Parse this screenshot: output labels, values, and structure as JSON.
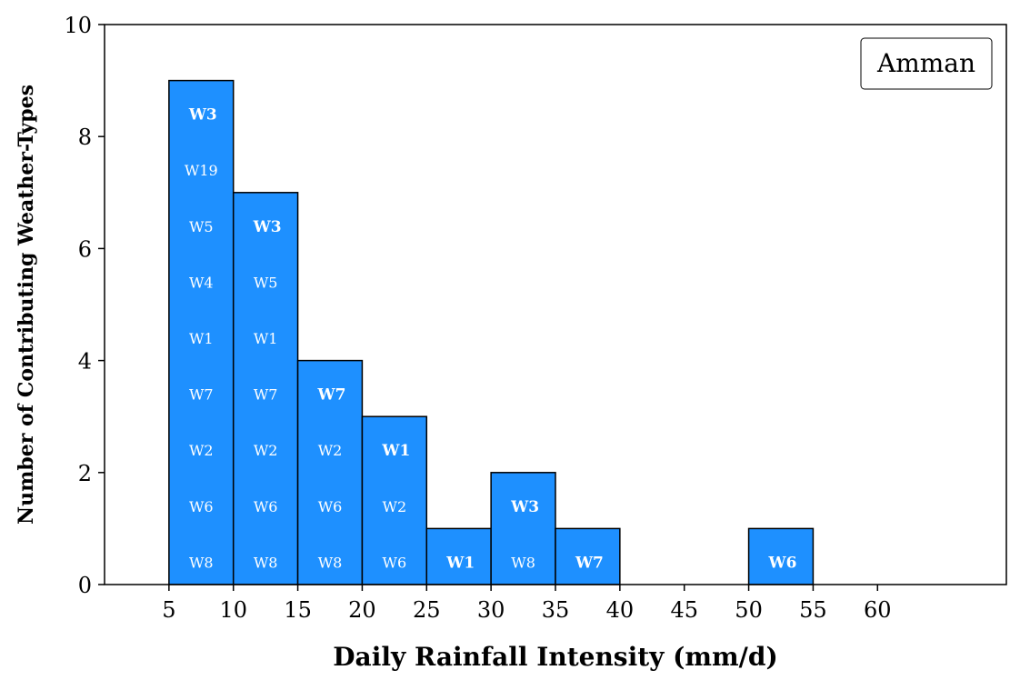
{
  "chart_data": {
    "type": "bar",
    "title": "",
    "xlabel": "Daily Rainfall Intensity (mm/d)",
    "ylabel": "Number of Contributing Weather-Types",
    "xlim": [
      0,
      70
    ],
    "ylim": [
      0,
      10
    ],
    "xticks": [
      5,
      10,
      15,
      20,
      25,
      30,
      35,
      40,
      45,
      50,
      55,
      60
    ],
    "yticks": [
      0,
      2,
      4,
      6,
      8,
      10
    ],
    "legend": {
      "label": "Amman",
      "placement": "top-right"
    },
    "bar_color": "#1e90ff",
    "bins": [
      {
        "start": 5,
        "end": 10,
        "count": 9,
        "types": [
          "W8",
          "W6",
          "W2",
          "W7",
          "W1",
          "W4",
          "W5",
          "W19",
          "W3"
        ]
      },
      {
        "start": 10,
        "end": 15,
        "count": 7,
        "types": [
          "W8",
          "W6",
          "W2",
          "W7",
          "W1",
          "W5",
          "W3"
        ]
      },
      {
        "start": 15,
        "end": 20,
        "count": 4,
        "types": [
          "W8",
          "W6",
          "W2",
          "W7"
        ]
      },
      {
        "start": 20,
        "end": 25,
        "count": 3,
        "types": [
          "W6",
          "W2",
          "W1"
        ]
      },
      {
        "start": 25,
        "end": 30,
        "count": 1,
        "types": [
          "W1"
        ]
      },
      {
        "start": 30,
        "end": 35,
        "count": 2,
        "types": [
          "W8",
          "W3"
        ]
      },
      {
        "start": 35,
        "end": 40,
        "count": 1,
        "types": [
          "W7"
        ]
      },
      {
        "start": 50,
        "end": 55,
        "count": 1,
        "types": [
          "W6"
        ]
      }
    ]
  }
}
